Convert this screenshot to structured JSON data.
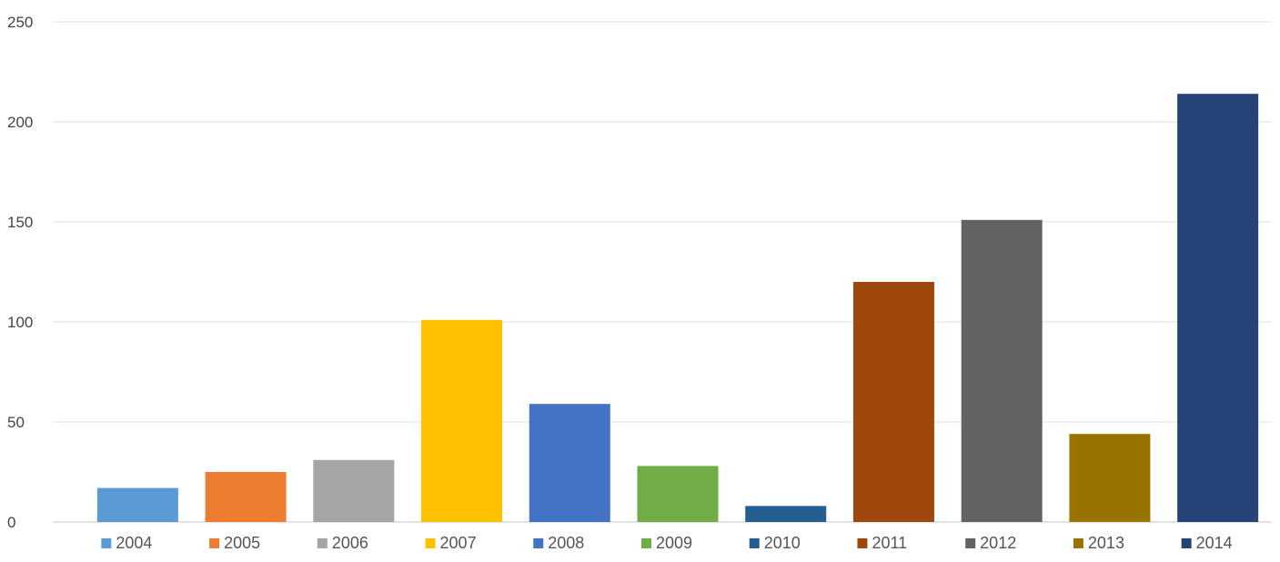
{
  "chart_data": {
    "type": "bar",
    "categories": [
      "2004",
      "2005",
      "2006",
      "2007",
      "2008",
      "2009",
      "2010",
      "2011",
      "2012",
      "2013",
      "2014"
    ],
    "series": [
      {
        "name": "",
        "values": [
          17,
          25,
          31,
          101,
          59,
          28,
          8,
          120,
          151,
          44,
          214
        ]
      }
    ],
    "colors": [
      "#5b9bd5",
      "#ed7d31",
      "#a5a5a5",
      "#ffc000",
      "#4472c4",
      "#70ad47",
      "#255e91",
      "#9e480e",
      "#636363",
      "#997300",
      "#264478"
    ],
    "ylim": [
      0,
      250
    ],
    "yticks": [
      "0",
      "50",
      "100",
      "150",
      "200",
      "250"
    ],
    "grid": true,
    "legend_position": "bottom",
    "title": "",
    "xlabel": "",
    "ylabel": ""
  }
}
